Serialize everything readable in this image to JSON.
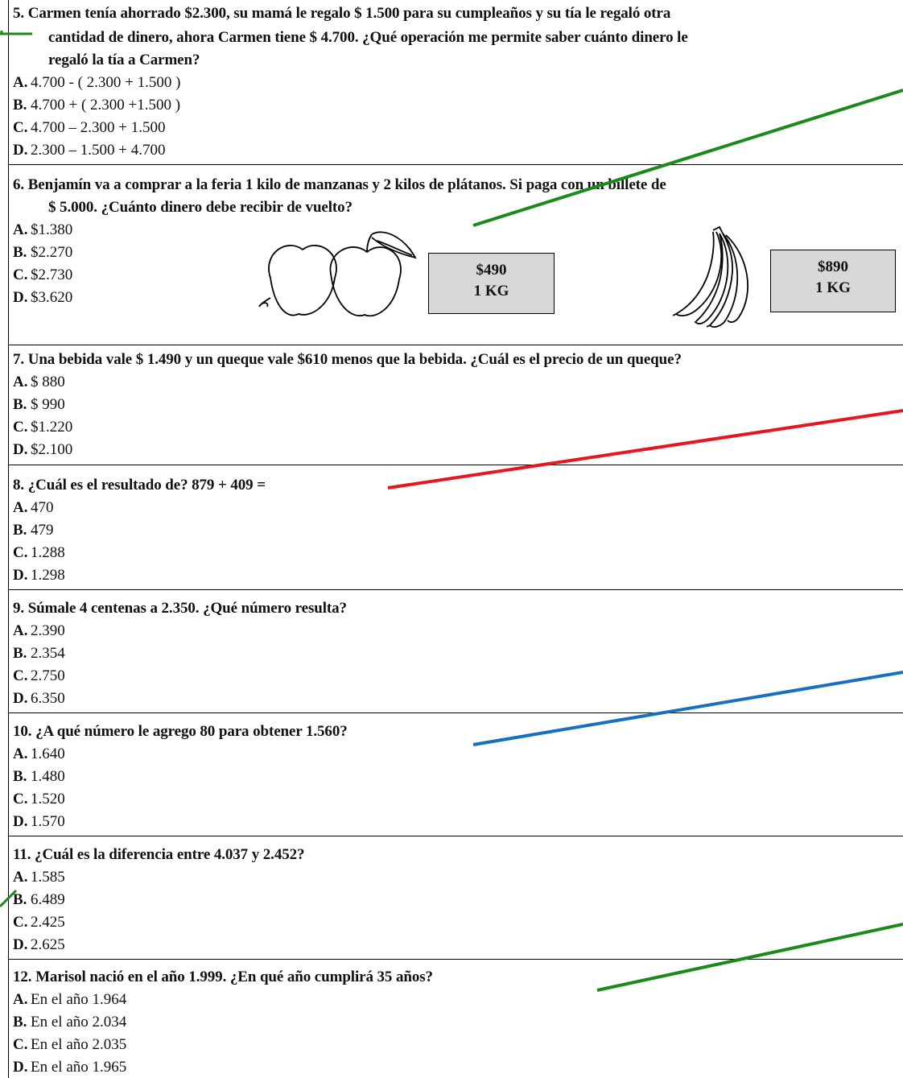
{
  "questions": [
    {
      "id": "q5",
      "lines": [
        "5.  Carmen tenía ahorrado $2.300, su mamá le regalo $ 1.500 para su cumpleaños y su tía le regaló otra",
        "cantidad de dinero, ahora Carmen tiene $ 4.700. ¿Qué operación me permite saber cuánto dinero le",
        "regaló la tía a Carmen?"
      ],
      "options": [
        {
          "letter": "A.",
          "text": "4.700 - ( 2.300 + 1.500 )"
        },
        {
          "letter": "B.",
          "text": "4.700 + ( 2.300 +1.500 )"
        },
        {
          "letter": "C.",
          "text": "4.700 – 2.300 + 1.500"
        },
        {
          "letter": "D.",
          "text": "2.300 – 1.500 + 4.700"
        }
      ]
    },
    {
      "id": "q6",
      "lines": [
        "6.  Benjamín va a comprar a la feria 1 kilo de manzanas y 2 kilos de plátanos. Si paga con un billete de",
        "$ 5.000. ¿Cuánto dinero debe recibir de vuelto?"
      ],
      "options": [
        {
          "letter": "A.",
          "text": "$1.380"
        },
        {
          "letter": "B.",
          "text": "$2.270"
        },
        {
          "letter": "C.",
          "text": "$2.730"
        },
        {
          "letter": "D.",
          "text": "$3.620"
        }
      ],
      "apple_price": {
        "price": "$490",
        "unit": "1 KG"
      },
      "banana_price": {
        "price": "$890",
        "unit": "1 KG"
      }
    },
    {
      "id": "q7",
      "lines": [
        "7.  Una bebida vale $ 1.490 y un queque vale $610 menos que la bebida. ¿Cuál es el precio de un queque?"
      ],
      "options": [
        {
          "letter": "A.",
          "text": "$ 880"
        },
        {
          "letter": "B.",
          "text": "$ 990"
        },
        {
          "letter": "C.",
          "text": "$1.220"
        },
        {
          "letter": "D.",
          "text": "$2.100"
        }
      ]
    },
    {
      "id": "q8",
      "lines": [
        "8.  ¿Cuál es el resultado de? 879 + 409 ="
      ],
      "options": [
        {
          "letter": "A.",
          "text": "470"
        },
        {
          "letter": "B.",
          "text": "479"
        },
        {
          "letter": "C.",
          "text": "1.288"
        },
        {
          "letter": "D.",
          "text": "1.298"
        }
      ]
    },
    {
      "id": "q9",
      "lines": [
        "9.  Súmale 4 centenas a 2.350. ¿Qué número resulta?"
      ],
      "options": [
        {
          "letter": "A.",
          "text": "2.390"
        },
        {
          "letter": "B.",
          "text": "2.354"
        },
        {
          "letter": "C.",
          "text": "2.750"
        },
        {
          "letter": "D.",
          "text": "6.350"
        }
      ]
    },
    {
      "id": "q10",
      "lines": [
        "10. ¿A qué número le agrego 80 para obtener 1.560?"
      ],
      "options": [
        {
          "letter": "A.",
          "text": "1.640"
        },
        {
          "letter": "B.",
          "text": "1.480"
        },
        {
          "letter": "C.",
          "text": "1.520"
        },
        {
          "letter": "D.",
          "text": "1.570"
        }
      ]
    },
    {
      "id": "q11",
      "lines": [
        "11. ¿Cuál es la diferencia entre 4.037 y 2.452?"
      ],
      "options": [
        {
          "letter": "A.",
          "text": "1.585"
        },
        {
          "letter": "B.",
          "text": "6.489"
        },
        {
          "letter": "C.",
          "text": "2.425"
        },
        {
          "letter": "D.",
          "text": "2.625"
        }
      ]
    },
    {
      "id": "q12",
      "lines": [
        "12. Marisol nació en el año 1.999. ¿En qué año cumplirá 35 años?"
      ],
      "options": [
        {
          "letter": "A.",
          "text": "En el año 1.964"
        },
        {
          "letter": "B.",
          "text": "En el año 2.034"
        },
        {
          "letter": "C.",
          "text": "En el año 2.035"
        },
        {
          "letter": "D.",
          "text": "En el año 1.965"
        }
      ]
    }
  ],
  "colors": {
    "green_line": "#1a8a1a",
    "red_line": "#e8141e",
    "blue_line": "#1670c0",
    "price_box_fill": "#d8d8d8"
  }
}
